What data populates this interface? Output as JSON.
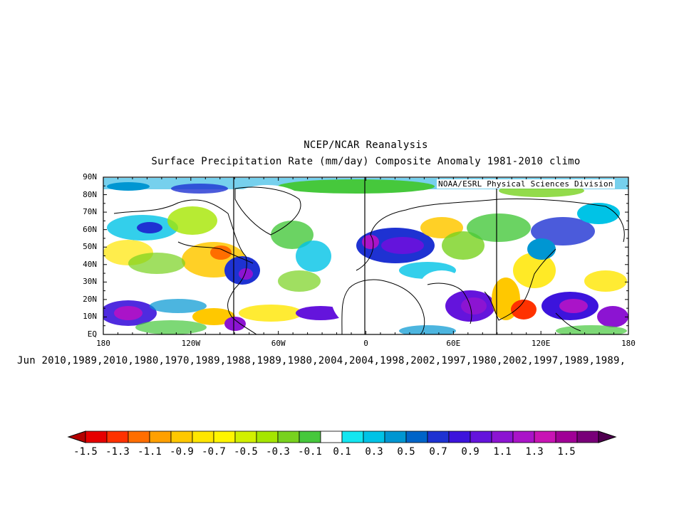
{
  "title_line1": "NCEP/NCAR Reanalysis",
  "title_line2": "Surface Precipitation Rate (mm/day) Composite Anomaly 1981-2010 climo",
  "credit": "NOAA/ESRL Physical Sciences Division",
  "composite_label": "Jun 2010,1989,2010,1980,1970,1989,1988,1989,1980,2004,2004,1998,2002,1997,1980,2002,1997,1989,1989,",
  "y_axis_labels": [
    "90N",
    "80N",
    "70N",
    "60N",
    "50N",
    "40N",
    "30N",
    "20N",
    "10N",
    "EQ"
  ],
  "x_axis_labels": [
    "180",
    "120W",
    "60W",
    "0",
    "60E",
    "120E",
    "180"
  ],
  "colorbar": {
    "labels": [
      "-1.5",
      "-1.3",
      "-1.1",
      "-0.9",
      "-0.7",
      "-0.5",
      "-0.3",
      "-0.1",
      "0.1",
      "0.3",
      "0.5",
      "0.7",
      "0.9",
      "1.1",
      "1.3",
      "1.5"
    ],
    "colors": [
      "#b40000",
      "#e60000",
      "#ff3200",
      "#ff6e00",
      "#ffa000",
      "#ffc800",
      "#ffe600",
      "#fff500",
      "#d2f000",
      "#a5e600",
      "#78d21e",
      "#46c83c",
      "#ffffff",
      "#14e6f0",
      "#00c3e6",
      "#0096d2",
      "#0064c8",
      "#1e32d2",
      "#3c14dc",
      "#6414dc",
      "#8c14d2",
      "#aa14c8",
      "#c814b4",
      "#a00096",
      "#780078",
      "#500050"
    ]
  }
}
